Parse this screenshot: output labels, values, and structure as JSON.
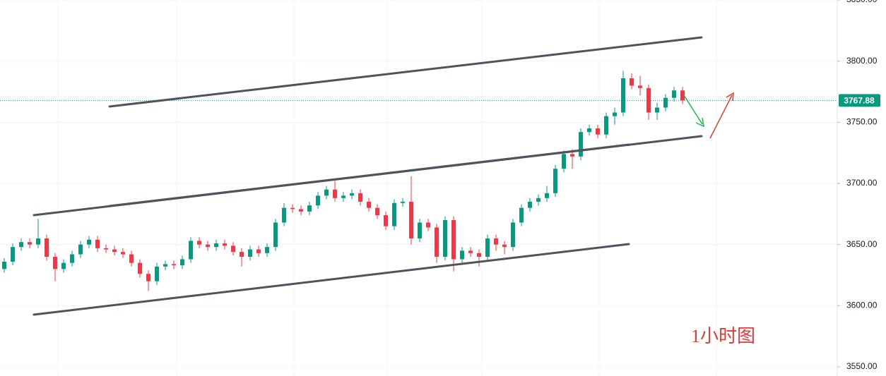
{
  "chart_data": {
    "type": "candlestick",
    "up_color": "#089981",
    "down_color": "#f23645",
    "ylim": [
      3542.5,
      3850
    ],
    "yticks": [
      {
        "value": 3550,
        "label": "3550.00"
      },
      {
        "value": 3600,
        "label": "3600.00"
      },
      {
        "value": 3650,
        "label": "3650.00"
      },
      {
        "value": 3700,
        "label": "3700.00"
      },
      {
        "value": 3750,
        "label": "3750.00"
      },
      {
        "value": 3800,
        "label": "3800.00"
      },
      {
        "value": 3850,
        "label": "3850.00"
      }
    ],
    "grid": true,
    "annotation": "1小时图",
    "open": [
      3630,
      3636,
      3648,
      3652,
      3650,
      3655,
      3640,
      3630,
      3635,
      3642,
      3650,
      3654,
      3647,
      3646,
      3644,
      3642,
      3635,
      3626,
      3620,
      3632,
      3634,
      3633,
      3638,
      3653,
      3650,
      3648,
      3651,
      3649,
      3644,
      3640,
      3646,
      3643,
      3648,
      3668,
      3680,
      3679,
      3677,
      3682,
      3690,
      3695,
      3688,
      3690,
      3692,
      3685,
      3680,
      3674,
      3665,
      3684,
      3685,
      3655,
      3668,
      3664,
      3640,
      3670,
      3638,
      3645,
      3643,
      3640,
      3655,
      3650,
      3648,
      3668,
      3680,
      3685,
      3688,
      3692,
      3712,
      3724,
      3722,
      3742,
      3745,
      3740,
      3755,
      3758,
      3786,
      3780,
      3778,
      3758,
      3762,
      3770,
      3776
    ],
    "high": [
      3639,
      3651,
      3655,
      3655,
      3671,
      3658,
      3643,
      3638,
      3645,
      3653,
      3657,
      3657,
      3650,
      3649,
      3647,
      3645,
      3638,
      3629,
      3635,
      3637,
      3637,
      3641,
      3656,
      3656,
      3653,
      3654,
      3654,
      3652,
      3647,
      3649,
      3649,
      3651,
      3671,
      3684,
      3683,
      3682,
      3685,
      3693,
      3698,
      3702,
      3693,
      3695,
      3695,
      3688,
      3683,
      3677,
      3687,
      3688,
      3706,
      3671,
      3671,
      3667,
      3673,
      3673,
      3648,
      3648,
      3646,
      3658,
      3658,
      3653,
      3671,
      3683,
      3688,
      3691,
      3698,
      3715,
      3727,
      3728,
      3745,
      3748,
      3748,
      3758,
      3762,
      3792,
      3790,
      3788,
      3781,
      3766,
      3773,
      3779,
      3779
    ],
    "low": [
      3627,
      3633,
      3645,
      3647,
      3647,
      3637,
      3620,
      3627,
      3632,
      3639,
      3647,
      3644,
      3643,
      3641,
      3639,
      3632,
      3623,
      3612,
      3617,
      3629,
      3630,
      3630,
      3635,
      3647,
      3645,
      3645,
      3646,
      3641,
      3632,
      3637,
      3640,
      3640,
      3645,
      3665,
      3676,
      3674,
      3674,
      3679,
      3687,
      3685,
      3685,
      3687,
      3682,
      3677,
      3671,
      3662,
      3662,
      3681,
      3650,
      3652,
      3661,
      3635,
      3637,
      3628,
      3635,
      3640,
      3632,
      3637,
      3645,
      3642,
      3645,
      3665,
      3677,
      3682,
      3685,
      3689,
      3709,
      3712,
      3719,
      3739,
      3737,
      3737,
      3748,
      3755,
      3777,
      3772,
      3752,
      3752,
      3759,
      3767,
      3765
    ],
    "close": [
      3636,
      3648,
      3652,
      3650,
      3655,
      3640,
      3630,
      3635,
      3642,
      3650,
      3654,
      3647,
      3646,
      3644,
      3642,
      3635,
      3626,
      3620,
      3632,
      3634,
      3633,
      3638,
      3653,
      3650,
      3648,
      3651,
      3649,
      3644,
      3640,
      3646,
      3643,
      3648,
      3668,
      3680,
      3679,
      3677,
      3682,
      3690,
      3695,
      3688,
      3690,
      3692,
      3685,
      3680,
      3674,
      3665,
      3684,
      3685,
      3655,
      3668,
      3664,
      3640,
      3670,
      3638,
      3645,
      3643,
      3640,
      3655,
      3650,
      3648,
      3668,
      3680,
      3685,
      3688,
      3692,
      3712,
      3724,
      3722,
      3742,
      3745,
      3740,
      3755,
      3758,
      3786,
      3780,
      3778,
      3758,
      3762,
      3770,
      3776,
      3767.88
    ]
  }
}
